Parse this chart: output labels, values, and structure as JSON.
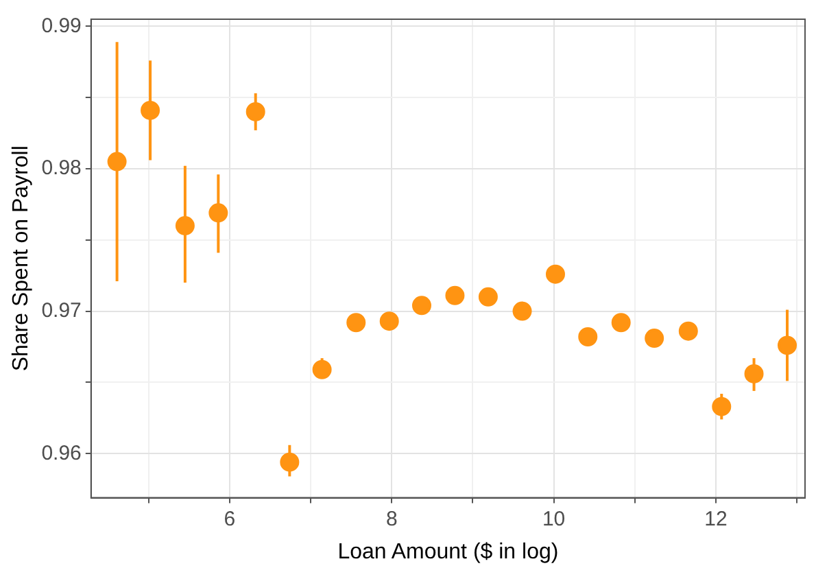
{
  "chart_data": {
    "type": "scatter",
    "xlabel": "Loan Amount ($ in log)",
    "ylabel": "Share Spent on Payroll",
    "x": [
      4.61,
      5.02,
      5.45,
      5.86,
      6.32,
      6.74,
      7.14,
      7.56,
      7.97,
      8.37,
      8.78,
      9.19,
      9.61,
      10.02,
      10.42,
      10.83,
      11.24,
      11.66,
      12.07,
      12.47,
      12.88
    ],
    "series": [
      {
        "color": "#ff9412",
        "values": [
          0.9805,
          0.9841,
          0.976,
          0.9769,
          0.984,
          0.9594,
          0.9659,
          0.9692,
          0.9693,
          0.9704,
          0.9711,
          0.971,
          0.97,
          0.9726,
          0.9682,
          0.9692,
          0.9681,
          0.9686,
          0.9633,
          0.9656,
          0.9676
        ],
        "errors": [
          [
            0.9721,
            0.9889
          ],
          [
            0.9806,
            0.9876
          ],
          [
            0.972,
            0.9802
          ],
          [
            0.9741,
            0.9796
          ],
          [
            0.9827,
            0.9853
          ],
          [
            0.9584,
            0.9606
          ],
          [
            0.9653,
            0.9667
          ],
          null,
          null,
          null,
          null,
          null,
          null,
          null,
          null,
          null,
          null,
          [
            0.968,
            0.9691
          ],
          [
            0.9624,
            0.9642
          ],
          [
            0.9644,
            0.9667
          ],
          [
            0.9651,
            0.9701
          ]
        ]
      }
    ],
    "xlim": [
      4.29,
      13.1
    ],
    "ylim": [
      0.9569,
      0.9905
    ],
    "xticks": [
      {
        "value": 5,
        "label": null
      },
      6,
      {
        "value": 7,
        "label": null
      },
      8,
      {
        "value": 9,
        "label": null
      },
      10,
      {
        "value": 11,
        "label": null
      },
      12,
      {
        "value": 13,
        "label": null
      }
    ],
    "yticks": [
      0.96,
      {
        "value": 0.965,
        "label": null
      },
      0.97,
      {
        "value": 0.975,
        "label": null
      },
      0.98,
      {
        "value": 0.985,
        "label": null
      },
      0.99
    ],
    "grid": true,
    "marker": "circle",
    "legend": false
  }
}
